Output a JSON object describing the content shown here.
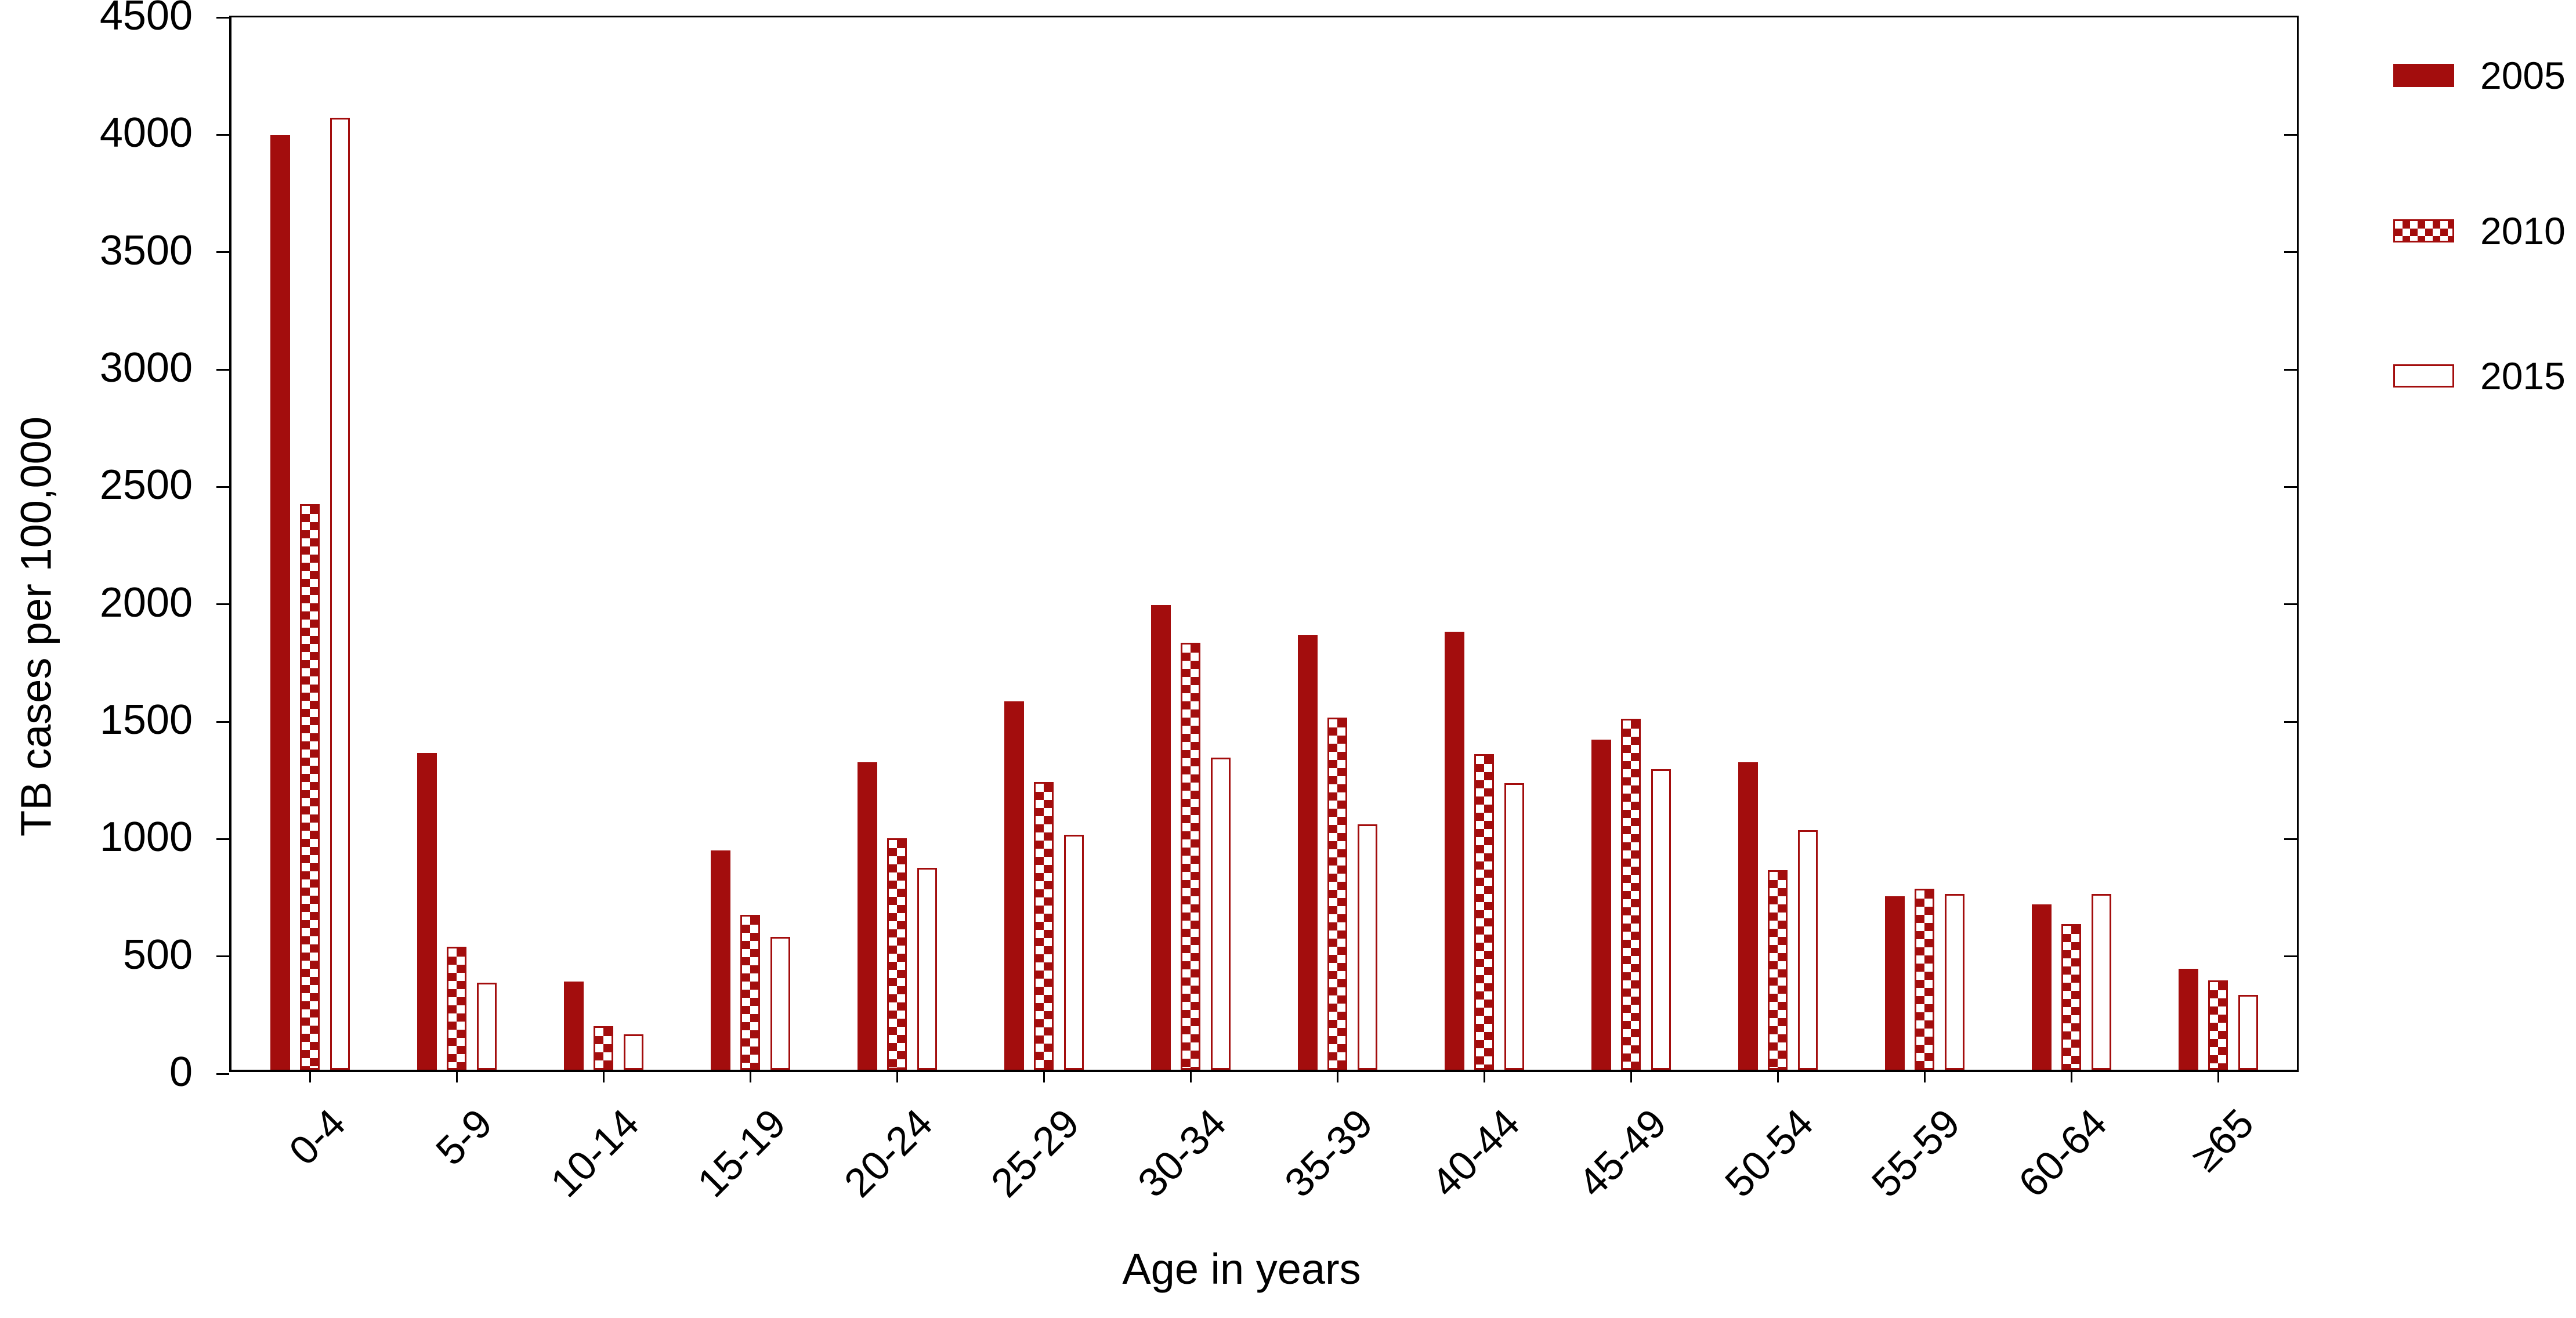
{
  "figure": {
    "background": "#ffffff",
    "bar_red": "#a30d0d",
    "axis_color": "#000000"
  },
  "chart_data": {
    "type": "bar",
    "title": "",
    "xlabel": "Age in years",
    "ylabel": "TB cases per 100,000",
    "ylim": [
      0,
      4500
    ],
    "ytick_step": 500,
    "ytick_labels": [
      "0",
      "500",
      "1000",
      "1500",
      "2000",
      "2500",
      "3000",
      "3500",
      "4000",
      "4500"
    ],
    "grid": false,
    "legend_position": "right-top",
    "categories": [
      "0-4",
      "5-9",
      "10-14",
      "15-19",
      "20-24",
      "25-29",
      "30-34",
      "35-39",
      "40-44",
      "45-49",
      "50-54",
      "55-59",
      "60-64",
      "≥65"
    ],
    "series": [
      {
        "name": "2005",
        "style": "solid",
        "values": [
          3980,
          1350,
          375,
          935,
          1310,
          1570,
          1980,
          1850,
          1865,
          1405,
          1310,
          740,
          705,
          430
        ]
      },
      {
        "name": "2010",
        "style": "checker",
        "values": [
          2410,
          525,
          185,
          660,
          985,
          1225,
          1820,
          1500,
          1345,
          1495,
          850,
          770,
          620,
          380
        ]
      },
      {
        "name": "2015",
        "style": "outline",
        "values": [
          4055,
          370,
          150,
          565,
          860,
          1000,
          1330,
          1045,
          1220,
          1280,
          1020,
          750,
          750,
          320
        ]
      }
    ]
  },
  "legend": {
    "items": [
      "2005",
      "2010",
      "2015"
    ]
  }
}
